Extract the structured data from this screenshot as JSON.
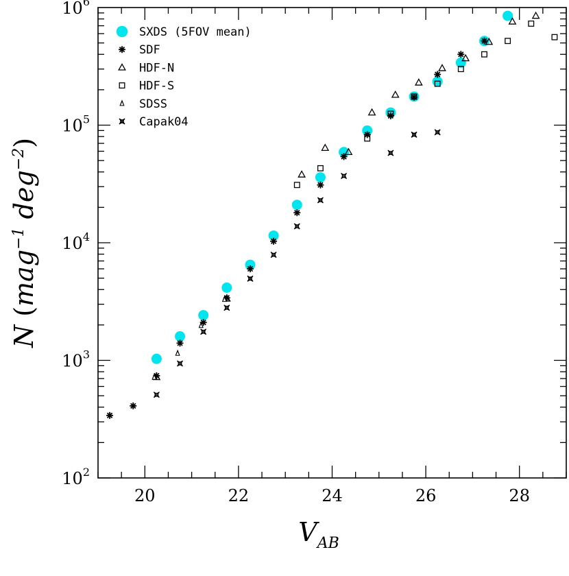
{
  "chart_data": {
    "type": "scatter",
    "title": "",
    "xlabel": "V",
    "xlabel_sub": "AB",
    "ylabel": "N (mag^-1 deg^-2)",
    "ylabel_parts": {
      "N": "N",
      "open": " (",
      "mag": "mag",
      "mag_exp": "−1",
      "deg": " deg",
      "deg_exp": "−2",
      "close": ")"
    },
    "xlim": [
      19.0,
      29.0
    ],
    "ylim": [
      100,
      1000000
    ],
    "yscale": "log",
    "x_ticks": [
      {
        "value": 20,
        "label": "20"
      },
      {
        "value": 22,
        "label": "22"
      },
      {
        "value": 24,
        "label": "24"
      },
      {
        "value": 26,
        "label": "26"
      },
      {
        "value": 28,
        "label": "28"
      }
    ],
    "y_ticks": [
      {
        "value": 100,
        "base": "10",
        "exp": "2"
      },
      {
        "value": 1000,
        "base": "10",
        "exp": "3"
      },
      {
        "value": 10000,
        "base": "10",
        "exp": "4"
      },
      {
        "value": 100000,
        "base": "10",
        "exp": "5"
      },
      {
        "value": 1000000,
        "base": "10",
        "exp": "6"
      }
    ],
    "legend_position": "top-left",
    "series": [
      {
        "name": "SXDS (5FOV mean)",
        "marker": "filled-circle",
        "color": "#00e5ee",
        "points": [
          [
            20.25,
            1030
          ],
          [
            20.75,
            1600
          ],
          [
            21.25,
            2420
          ],
          [
            21.75,
            4150
          ],
          [
            22.25,
            6500
          ],
          [
            22.75,
            11500
          ],
          [
            23.25,
            21000
          ],
          [
            23.75,
            36000
          ],
          [
            24.25,
            59000
          ],
          [
            24.75,
            90000
          ],
          [
            25.25,
            128000
          ],
          [
            25.75,
            175000
          ],
          [
            26.25,
            235000
          ],
          [
            26.75,
            340000
          ],
          [
            27.25,
            520000
          ],
          [
            27.75,
            850000
          ]
        ]
      },
      {
        "name": "SDF",
        "marker": "asterisk",
        "color": "#000000",
        "points": [
          [
            19.25,
            340
          ],
          [
            19.75,
            410
          ],
          [
            20.25,
            740
          ],
          [
            20.75,
            1400
          ],
          [
            21.25,
            2100
          ],
          [
            21.75,
            3400
          ],
          [
            22.25,
            6000
          ],
          [
            22.75,
            10300
          ],
          [
            23.25,
            18000
          ],
          [
            23.75,
            31000
          ],
          [
            24.25,
            54000
          ],
          [
            24.75,
            83000
          ],
          [
            25.25,
            120000
          ],
          [
            25.75,
            173000
          ],
          [
            26.25,
            270000
          ],
          [
            26.75,
            400000
          ],
          [
            27.25,
            520000
          ]
        ]
      },
      {
        "name": "HDF-N",
        "marker": "open-triangle",
        "color": "#000000",
        "points": [
          [
            20.25,
            720
          ],
          [
            21.75,
            3350
          ],
          [
            23.35,
            38000
          ],
          [
            23.85,
            64000
          ],
          [
            24.35,
            59000
          ],
          [
            24.85,
            128000
          ],
          [
            25.35,
            181000
          ],
          [
            25.85,
            230000
          ],
          [
            26.35,
            305000
          ],
          [
            26.85,
            370000
          ],
          [
            27.35,
            510000
          ],
          [
            27.85,
            760000
          ],
          [
            28.35,
            850000
          ]
        ]
      },
      {
        "name": "HDF-S",
        "marker": "open-square",
        "color": "#000000",
        "points": [
          [
            23.25,
            31000
          ],
          [
            23.75,
            43000
          ],
          [
            24.75,
            77000
          ],
          [
            25.25,
            125000
          ],
          [
            25.75,
            175000
          ],
          [
            26.25,
            225000
          ],
          [
            26.75,
            300000
          ],
          [
            27.25,
            400000
          ],
          [
            27.75,
            520000
          ],
          [
            28.25,
            730000
          ],
          [
            28.75,
            560000
          ]
        ]
      },
      {
        "name": "SDSS",
        "marker": "filled-triangle",
        "color": "#000000",
        "points": [
          [
            20.2,
            720
          ],
          [
            20.7,
            1150
          ],
          [
            21.2,
            1980
          ],
          [
            21.7,
            3300
          ]
        ]
      },
      {
        "name": "Capak04",
        "marker": "star4",
        "color": "#000000",
        "points": [
          [
            20.25,
            510
          ],
          [
            20.75,
            940
          ],
          [
            21.25,
            1750
          ],
          [
            21.75,
            2800
          ],
          [
            22.25,
            4950
          ],
          [
            22.75,
            7900
          ],
          [
            23.25,
            13800
          ],
          [
            23.75,
            23000
          ],
          [
            24.25,
            37000
          ],
          [
            25.25,
            58000
          ],
          [
            25.75,
            83000
          ],
          [
            26.25,
            87000
          ]
        ]
      }
    ]
  }
}
